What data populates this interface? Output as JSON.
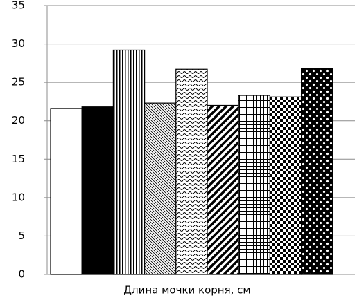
{
  "chart_data": {
    "type": "bar",
    "x_label": "Длина мочки корня, см",
    "categories": [
      null,
      null,
      null,
      null,
      null,
      null,
      null,
      null,
      null
    ],
    "values": [
      21.6,
      21.8,
      29.2,
      22.3,
      26.7,
      22.0,
      23.3,
      23.1,
      26.8
    ],
    "patterns": [
      "white",
      "black",
      "vertical-lines",
      "fine-diagonal",
      "waves",
      "wide-diagonal",
      "grid",
      "checker",
      "dots"
    ],
    "ylim": [
      0,
      35
    ],
    "yticks": [
      0,
      5,
      10,
      15,
      20,
      25,
      30,
      35
    ],
    "grid": true
  }
}
